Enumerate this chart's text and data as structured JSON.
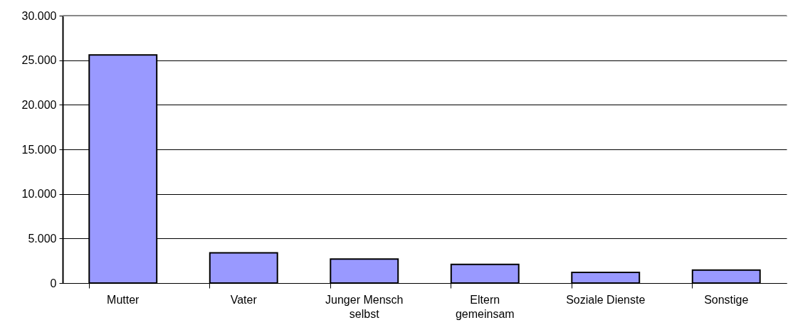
{
  "chart_data": {
    "type": "bar",
    "categories": [
      "Mutter",
      "Vater",
      "Junger Mensch selbst",
      "Eltern gemeinsam",
      "Soziale Dienste",
      "Sonstige"
    ],
    "values": [
      25600,
      3400,
      2700,
      2100,
      1200,
      1450
    ],
    "color": "#9999ff",
    "ylim": [
      0,
      30000
    ],
    "yticks": [
      0,
      {
        "value": 5000,
        "label": "5.000"
      },
      {
        "value": 10000,
        "label": "10.000"
      },
      {
        "value": 15000,
        "label": "15.000"
      },
      {
        "value": 20000,
        "label": "20.000"
      },
      {
        "value": 25000,
        "label": "25.000"
      },
      {
        "value": 30000,
        "label": "30.000"
      }
    ],
    "grid": "y"
  }
}
